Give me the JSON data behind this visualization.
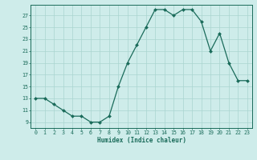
{
  "x": [
    0,
    1,
    2,
    3,
    4,
    5,
    6,
    7,
    8,
    9,
    10,
    11,
    12,
    13,
    14,
    15,
    16,
    17,
    18,
    19,
    20,
    21,
    22,
    23
  ],
  "y": [
    13,
    13,
    12,
    11,
    10,
    10,
    9,
    9,
    10,
    15,
    19,
    22,
    25,
    28,
    28,
    27,
    28,
    28,
    26,
    21,
    24,
    19,
    16,
    16
  ],
  "line_color": "#1a6b5a",
  "marker_color": "#1a6b5a",
  "bg_color": "#ceecea",
  "grid_color": "#aad4cf",
  "xlabel": "Humidex (Indice chaleur)",
  "xlim": [
    -0.5,
    23.5
  ],
  "ylim": [
    8.0,
    28.8
  ],
  "yticks": [
    9,
    11,
    13,
    15,
    17,
    19,
    21,
    23,
    25,
    27
  ],
  "xticks": [
    0,
    1,
    2,
    3,
    4,
    5,
    6,
    7,
    8,
    9,
    10,
    11,
    12,
    13,
    14,
    15,
    16,
    17,
    18,
    19,
    20,
    21,
    22,
    23
  ],
  "figsize": [
    3.2,
    2.0
  ],
  "dpi": 100
}
